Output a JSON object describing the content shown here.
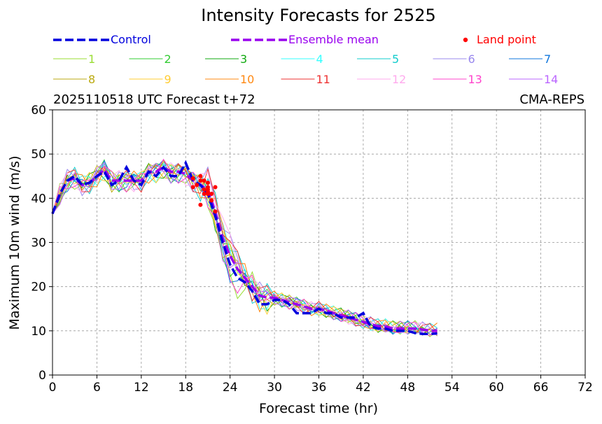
{
  "chart_data": {
    "type": "line",
    "title": "Intensity Forecasts for 2525",
    "subtitle_left": "2025110518 UTC Forecast t+72",
    "subtitle_right": "CMA-REPS",
    "xlabel": "Forecast time (hr)",
    "ylabel": "Maximum 10m wind (m/s)",
    "xlim": [
      0,
      72
    ],
    "ylim": [
      0,
      60
    ],
    "xticks": [
      "0",
      "6",
      "12",
      "18",
      "24",
      "30",
      "36",
      "42",
      "48",
      "54",
      "60",
      "66",
      "72"
    ],
    "yticks": [
      "0",
      "10",
      "20",
      "30",
      "40",
      "50",
      "60"
    ],
    "grid": true,
    "legend": {
      "control": "Control",
      "mean": "Ensemble mean",
      "land": "Land point",
      "members": [
        "1",
        "2",
        "3",
        "4",
        "5",
        "6",
        "7",
        "8",
        "9",
        "10",
        "11",
        "12",
        "13",
        "14"
      ]
    },
    "colors": {
      "control": "#0000dd",
      "mean": "#9900ee",
      "land": "#ff0000",
      "members": [
        "#99dd33",
        "#33cc33",
        "#11aa11",
        "#33ffff",
        "#11cccc",
        "#9988ee",
        "#1177dd",
        "#bbaa11",
        "#ffcc33",
        "#ff8811",
        "#ee3333",
        "#ffaaee",
        "#ff44cc",
        "#bb66ff"
      ]
    },
    "control_series": {
      "x": [
        0,
        1,
        2,
        3,
        4,
        5,
        6,
        7,
        8,
        9,
        10,
        11,
        12,
        13,
        14,
        15,
        16,
        17,
        18,
        19,
        20,
        21,
        22,
        23,
        24,
        25,
        26,
        27,
        28,
        29,
        30,
        31,
        32,
        33,
        34,
        35,
        36,
        37,
        38,
        39,
        40,
        41,
        42,
        43,
        44,
        45,
        46,
        47,
        48,
        49,
        50,
        51,
        52
      ],
      "y": [
        36.5,
        41,
        44,
        45,
        43,
        43.5,
        45,
        46,
        43,
        44,
        47,
        44,
        43,
        46,
        45,
        47,
        45,
        45,
        48,
        44,
        43,
        41,
        36,
        30,
        25,
        22,
        21,
        19,
        16,
        16,
        17,
        17,
        16,
        14,
        14,
        14,
        15,
        14,
        14,
        13,
        13,
        13,
        14,
        11,
        10.5,
        10.5,
        10,
        10,
        10,
        9.5,
        9.3,
        9.3,
        9.4
      ]
    },
    "mean_series": {
      "x": [
        0,
        1,
        2,
        3,
        4,
        5,
        6,
        7,
        8,
        9,
        10,
        11,
        12,
        13,
        14,
        15,
        16,
        17,
        18,
        19,
        20,
        21,
        22,
        23,
        24,
        25,
        26,
        27,
        28,
        29,
        30,
        31,
        32,
        33,
        34,
        35,
        36,
        37,
        38,
        39,
        40,
        41,
        42,
        43,
        44,
        45,
        46,
        47,
        48,
        49,
        50,
        51,
        52
      ],
      "y": [
        36.5,
        41,
        44,
        44.5,
        43,
        43.5,
        45,
        46.5,
        44,
        44,
        44,
        44,
        44,
        46,
        46,
        47,
        46,
        46,
        45.5,
        44,
        43,
        42,
        37,
        31,
        27,
        24,
        22,
        20,
        18,
        17.5,
        17.5,
        17,
        16.5,
        16,
        15.5,
        15,
        15,
        14.5,
        14,
        13.5,
        13,
        12.5,
        12,
        11.5,
        11,
        11,
        10.5,
        10.5,
        10.5,
        10.5,
        10.3,
        10,
        10
      ]
    },
    "members": [
      {
        "name": "1",
        "end": 52,
        "phase": 0.0
      },
      {
        "name": "2",
        "end": 53,
        "phase": 1.1
      },
      {
        "name": "3",
        "end": 53,
        "phase": 2.3
      },
      {
        "name": "4",
        "end": 50,
        "phase": 3.1
      },
      {
        "name": "5",
        "end": 53,
        "phase": 4.2
      },
      {
        "name": "6",
        "end": 52,
        "phase": 5.0
      },
      {
        "name": "7",
        "end": 52,
        "phase": 0.7
      },
      {
        "name": "8",
        "end": 52,
        "phase": 1.8
      },
      {
        "name": "9",
        "end": 49,
        "phase": 2.7
      },
      {
        "name": "10",
        "end": 52,
        "phase": 3.6
      },
      {
        "name": "11",
        "end": 52,
        "phase": 4.6
      },
      {
        "name": "12",
        "end": 53,
        "phase": 5.5
      },
      {
        "name": "13",
        "end": 52,
        "phase": 0.3
      },
      {
        "name": "14",
        "end": 53,
        "phase": 1.4
      }
    ],
    "land_points": {
      "x": [
        19,
        19,
        19.5,
        20,
        20,
        20,
        20.5,
        20.5,
        20.5,
        21,
        21,
        21,
        21,
        21,
        21.5,
        21.5,
        22,
        22
      ],
      "y": [
        44.5,
        42.5,
        43,
        44,
        45,
        38.5,
        44,
        42,
        41,
        41.5,
        42.5,
        43.5,
        42,
        41,
        39.5,
        41,
        37,
        42.5
      ]
    }
  }
}
